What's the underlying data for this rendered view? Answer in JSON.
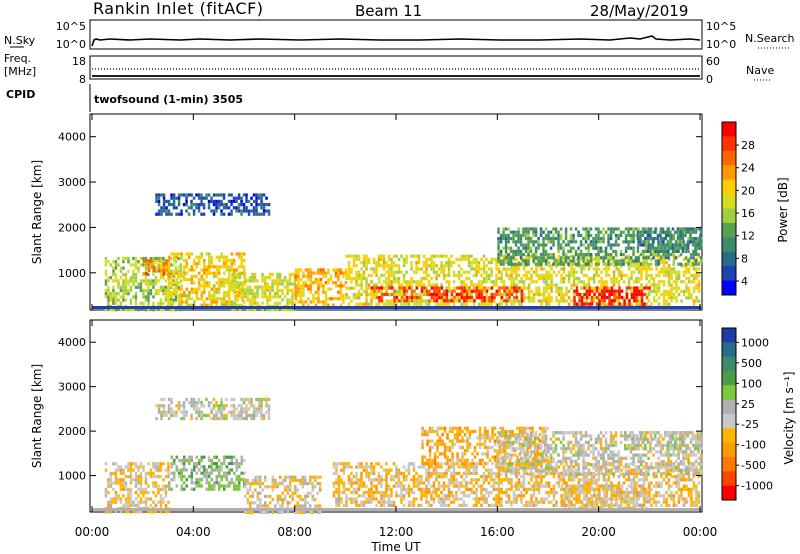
{
  "header": {
    "station": "Rankin Inlet (fitACF)",
    "beam": "Beam 11",
    "date": "28/May/2019"
  },
  "strip_panels": {
    "nsky": {
      "label": "N.Sky",
      "ticks": [
        "10^5",
        "10^0"
      ]
    },
    "nsearch": {
      "label": "N.Search",
      "ticks": [
        "10^5",
        "10^0"
      ]
    },
    "freq": {
      "label_line1": "Freq.",
      "label_line2": "[MHz]",
      "ticks": [
        "18",
        "8"
      ]
    },
    "nave": {
      "label": "Nave",
      "ticks": [
        "60",
        "0"
      ]
    },
    "cpid": {
      "label": "CPID",
      "value": "twofsound (1-min) 3505"
    }
  },
  "colorbars": {
    "power": {
      "label": "Power [dB]",
      "tick_labels": [
        "28",
        "24",
        "20",
        "16",
        "12",
        "8",
        "4"
      ],
      "colors": [
        "#ff0000",
        "#ff3300",
        "#ff6600",
        "#ff9900",
        "#ffcc00",
        "#d8dc20",
        "#a0d040",
        "#5aa050",
        "#3c8c6c",
        "#2a6a8a",
        "#1e40b0",
        "#0000ff"
      ]
    },
    "velocity": {
      "label": "Velocity [m s⁻¹]",
      "tick_labels": [
        "1000",
        "500",
        "100",
        "25",
        "-25",
        "-100",
        "-500",
        "-1000"
      ],
      "colors": [
        "#1e3ca0",
        "#2a6a8a",
        "#3c8c6c",
        "#4a9c48",
        "#7fc83c",
        "#b0b0b0",
        "#c8c8c8",
        "#ffb400",
        "#ff9900",
        "#ff7700",
        "#ff4400",
        "#ff0000"
      ]
    }
  },
  "chart_data": [
    {
      "type": "heatmap",
      "name": "power",
      "xlabel": "Time UT",
      "ylabel": "Slant Range [km]",
      "x_ticks": [
        "00:00",
        "04:00",
        "08:00",
        "12:00",
        "16:00",
        "20:00",
        "00:00"
      ],
      "xlim_hours": [
        0,
        24
      ],
      "y_ticks": [
        1000,
        2000,
        3000,
        4000
      ],
      "ylim_km": [
        180,
        4500
      ],
      "zlabel": "Power [dB]",
      "zlim": [
        0,
        30
      ],
      "echo_regions": [
        {
          "t0": 0.5,
          "t1": 3.5,
          "r0": 200,
          "r1": 1350,
          "z": 14
        },
        {
          "t0": 2.0,
          "t1": 3.0,
          "r0": 1000,
          "r1": 1300,
          "z": 22
        },
        {
          "t0": 2.5,
          "t1": 7.0,
          "r0": 2300,
          "r1": 2750,
          "z": 5
        },
        {
          "t0": 3.0,
          "t1": 6.0,
          "r0": 300,
          "r1": 1450,
          "z": 18
        },
        {
          "t0": 5.5,
          "t1": 8.0,
          "r0": 200,
          "r1": 1000,
          "z": 16
        },
        {
          "t0": 8.0,
          "t1": 10.0,
          "r0": 300,
          "r1": 1100,
          "z": 20
        },
        {
          "t0": 10.0,
          "t1": 24.0,
          "r0": 300,
          "r1": 1400,
          "z": 17
        },
        {
          "t0": 11.0,
          "t1": 17.0,
          "r0": 350,
          "r1": 700,
          "z": 26
        },
        {
          "t0": 16.0,
          "t1": 24.0,
          "r0": 1200,
          "r1": 2000,
          "z": 10
        },
        {
          "t0": 19.0,
          "t1": 22.0,
          "r0": 250,
          "r1": 700,
          "z": 28
        },
        {
          "t0": 21.5,
          "t1": 24.0,
          "r0": 1500,
          "r1": 2000,
          "z": 8
        }
      ]
    },
    {
      "type": "heatmap",
      "name": "velocity",
      "xlabel": "Time UT",
      "ylabel": "Slant Range [km]",
      "x_ticks": [
        "00:00",
        "04:00",
        "08:00",
        "12:00",
        "16:00",
        "20:00",
        "00:00"
      ],
      "xlim_hours": [
        0,
        24
      ],
      "y_ticks": [
        1000,
        2000,
        3000,
        4000
      ],
      "ylim_km": [
        180,
        4500
      ],
      "zlabel": "Velocity [m s⁻¹]",
      "zlim": [
        -1000,
        1000
      ],
      "echo_regions": [
        {
          "t0": 0.5,
          "t1": 3.0,
          "r0": 200,
          "r1": 1300,
          "z": -150
        },
        {
          "t0": 2.5,
          "t1": 7.0,
          "r0": 2300,
          "r1": 2750,
          "z": 0
        },
        {
          "t0": 3.0,
          "t1": 6.0,
          "r0": 700,
          "r1": 1450,
          "z": 200
        },
        {
          "t0": 6.0,
          "t1": 9.0,
          "r0": 200,
          "r1": 1000,
          "z": -120
        },
        {
          "t0": 9.5,
          "t1": 24.0,
          "r0": 300,
          "r1": 1300,
          "z": -200
        },
        {
          "t0": 13.0,
          "t1": 18.0,
          "r0": 1300,
          "r1": 2100,
          "z": -300
        },
        {
          "t0": 16.0,
          "t1": 24.0,
          "r0": 1000,
          "r1": 2000,
          "z": 0
        },
        {
          "t0": 18.5,
          "t1": 22.0,
          "r0": 250,
          "r1": 800,
          "z": -150
        },
        {
          "t0": 21.0,
          "t1": 24.0,
          "r0": 1600,
          "r1": 2000,
          "z": 10
        }
      ]
    }
  ]
}
